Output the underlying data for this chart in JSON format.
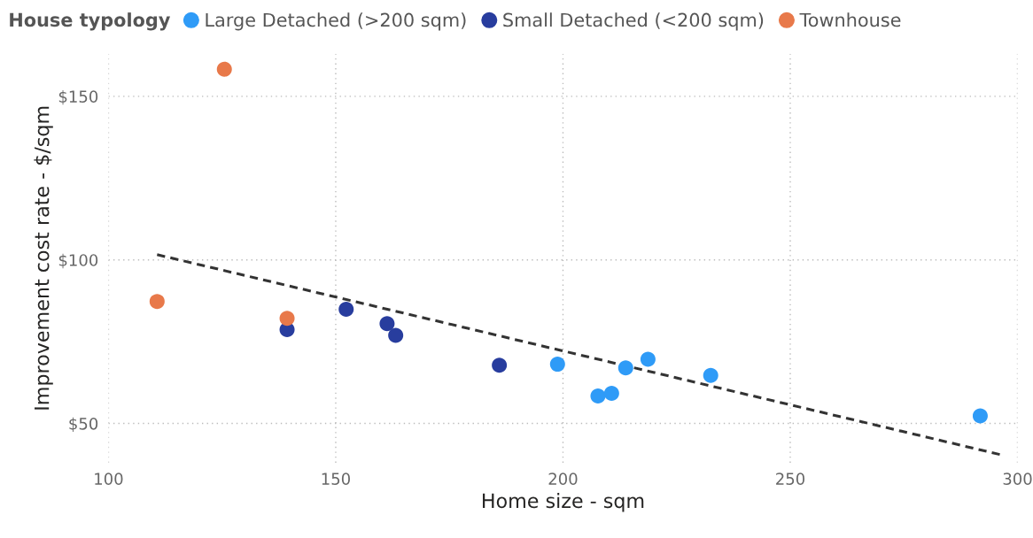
{
  "chart_data": {
    "type": "scatter",
    "xlabel": "Home size - sqm",
    "ylabel": "Improvement cost rate - $/sqm",
    "legend_title": "House typology",
    "series": [
      {
        "name": "Large Detached (>200 sqm)",
        "color": "#2f9bf7",
        "x": [
          198.8,
          207.7,
          210.7,
          213.8,
          218.7,
          232.5,
          291.8
        ],
        "values": [
          68.1,
          58.4,
          59.2,
          67.0,
          69.6,
          64.7,
          52.3
        ]
      },
      {
        "name": "Small Detached (<200 sqm)",
        "color": "#283d9e",
        "x": [
          139.3,
          152.3,
          161.3,
          163.2,
          186.0
        ],
        "values": [
          78.7,
          84.9,
          80.5,
          76.9,
          67.8
        ]
      },
      {
        "name": "Townhouse",
        "color": "#e8794a",
        "x": [
          110.7,
          125.5,
          139.3
        ],
        "values": [
          87.3,
          158.3,
          82.1
        ]
      },
      {
        "type": "line",
        "color": "#333333",
        "line_style": "dashed",
        "marker": "none",
        "x": [
          110.7,
          296.1
        ],
        "values": [
          101.6,
          40.5
        ]
      }
    ],
    "xlim": [
      100,
      300
    ],
    "ylim": [
      38,
      163
    ],
    "xticks": [
      100,
      150,
      200,
      250,
      300
    ],
    "yticks": [
      {
        "value": 50,
        "label": "$50"
      },
      {
        "value": 100,
        "label": "$100"
      },
      {
        "value": 150,
        "label": "$150"
      }
    ],
    "grid": true,
    "legend": "top left",
    "marker": "circle"
  }
}
